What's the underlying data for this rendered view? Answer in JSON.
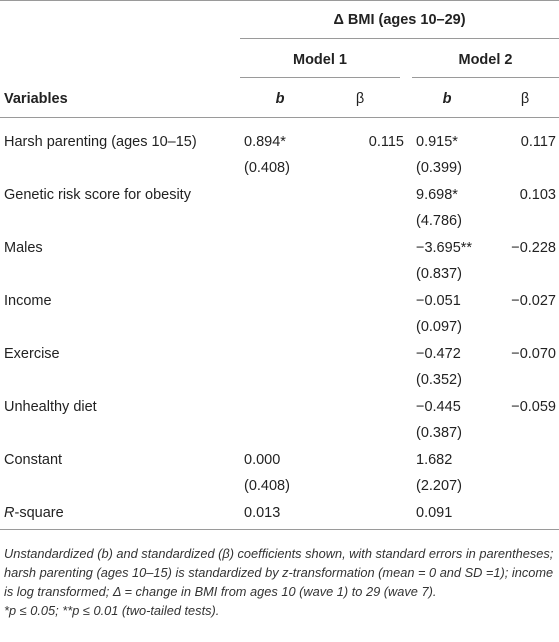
{
  "header": {
    "span_title": "Δ BMI (ages 10–29)",
    "model1": "Model 1",
    "model2": "Model 2",
    "variables": "Variables",
    "b": "b",
    "beta": "β"
  },
  "rows": [
    {
      "label": "Harsh parenting (ages 10–15)",
      "m1_b": "0.894*",
      "m1_se": "(0.408)",
      "m1_beta": "0.115",
      "m2_b": "0.915*",
      "m2_se": "(0.399)",
      "m2_beta": "0.117"
    },
    {
      "label": "Genetic risk score for obesity",
      "m1_b": "",
      "m1_se": "",
      "m1_beta": "",
      "m2_b": "9.698*",
      "m2_se": "(4.786)",
      "m2_beta": "0.103"
    },
    {
      "label": "Males",
      "m1_b": "",
      "m1_se": "",
      "m1_beta": "",
      "m2_b": "−3.695**",
      "m2_se": "(0.837)",
      "m2_beta": "−0.228"
    },
    {
      "label": "Income",
      "m1_b": "",
      "m1_se": "",
      "m1_beta": "",
      "m2_b": "−0.051",
      "m2_se": "(0.097)",
      "m2_beta": "−0.027"
    },
    {
      "label": "Exercise",
      "m1_b": "",
      "m1_se": "",
      "m1_beta": "",
      "m2_b": "−0.472",
      "m2_se": "(0.352)",
      "m2_beta": "−0.070"
    },
    {
      "label": "Unhealthy diet",
      "m1_b": "",
      "m1_se": "",
      "m1_beta": "",
      "m2_b": "−0.445",
      "m2_se": "(0.387)",
      "m2_beta": "−0.059"
    },
    {
      "label": "Constant",
      "m1_b": "0.000",
      "m1_se": "(0.408)",
      "m1_beta": "",
      "m2_b": "1.682",
      "m2_se": "(2.207)",
      "m2_beta": ""
    }
  ],
  "rsquare": {
    "label_italic": "R",
    "label_rest": "-square",
    "m1": "0.013",
    "m2": "0.091"
  },
  "footnote": {
    "line1": "Unstandardized (b) and standardized (β) coefficients shown, with standard errors in parentheses; harsh parenting (ages 10–15) is standardized by z-transformation (mean = 0 and SD =1); income is log transformed; Δ = change in BMI from ages 10 (wave 1) to 29 (wave 7).",
    "line2": "*p ≤ 0.05; **p ≤ 0.01 (two-tailed tests)."
  }
}
